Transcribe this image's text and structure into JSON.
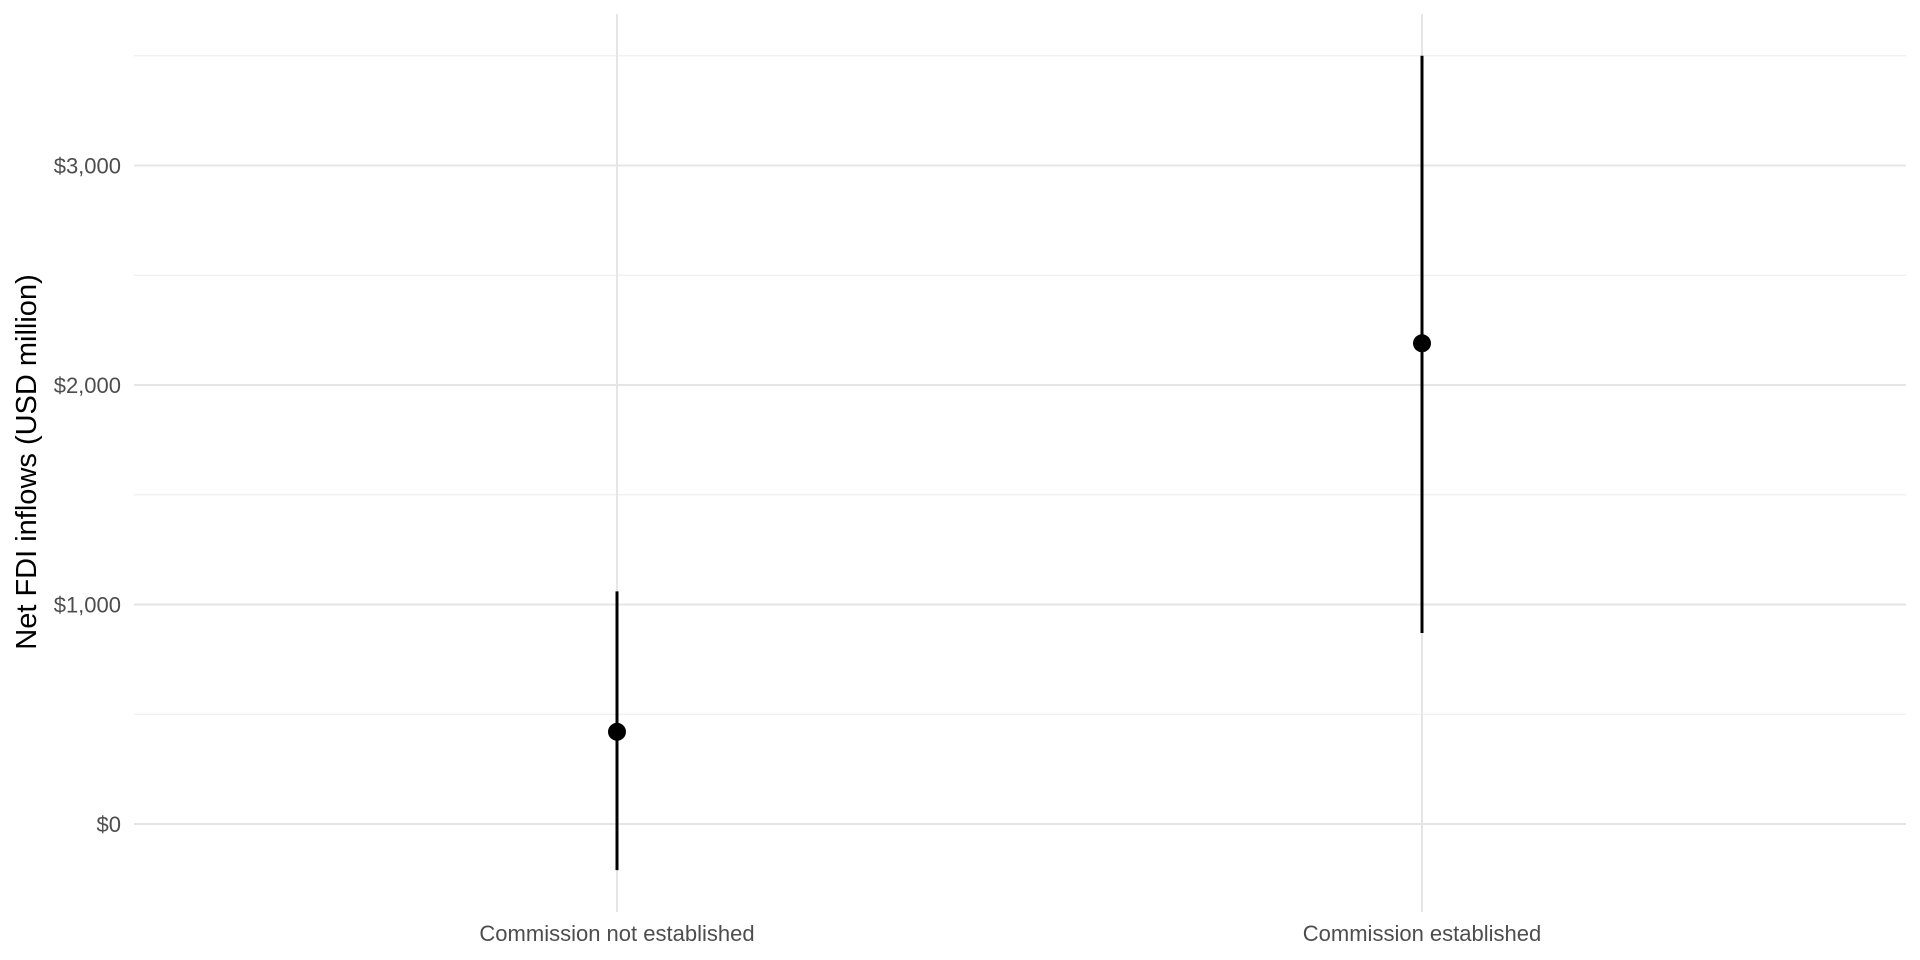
{
  "chart_data": {
    "type": "pointrange",
    "title": "",
    "xlabel": "",
    "ylabel": "Net FDI inflows (USD million)",
    "categories": [
      "Commission not established",
      "Commission established"
    ],
    "estimates": [
      420,
      2190
    ],
    "lower": [
      -210,
      870
    ],
    "upper": [
      1060,
      3500
    ],
    "y_ticks": [
      0,
      1000,
      2000,
      3000
    ],
    "y_tick_labels": [
      "$0",
      "$1,000",
      "$2,000",
      "$3,000"
    ],
    "ylim": [
      -210,
      3500
    ],
    "grid": true,
    "legend": "none",
    "colors": {
      "point": "#000000",
      "error_bar": "#000000",
      "grid": "#e5e5e5"
    }
  }
}
